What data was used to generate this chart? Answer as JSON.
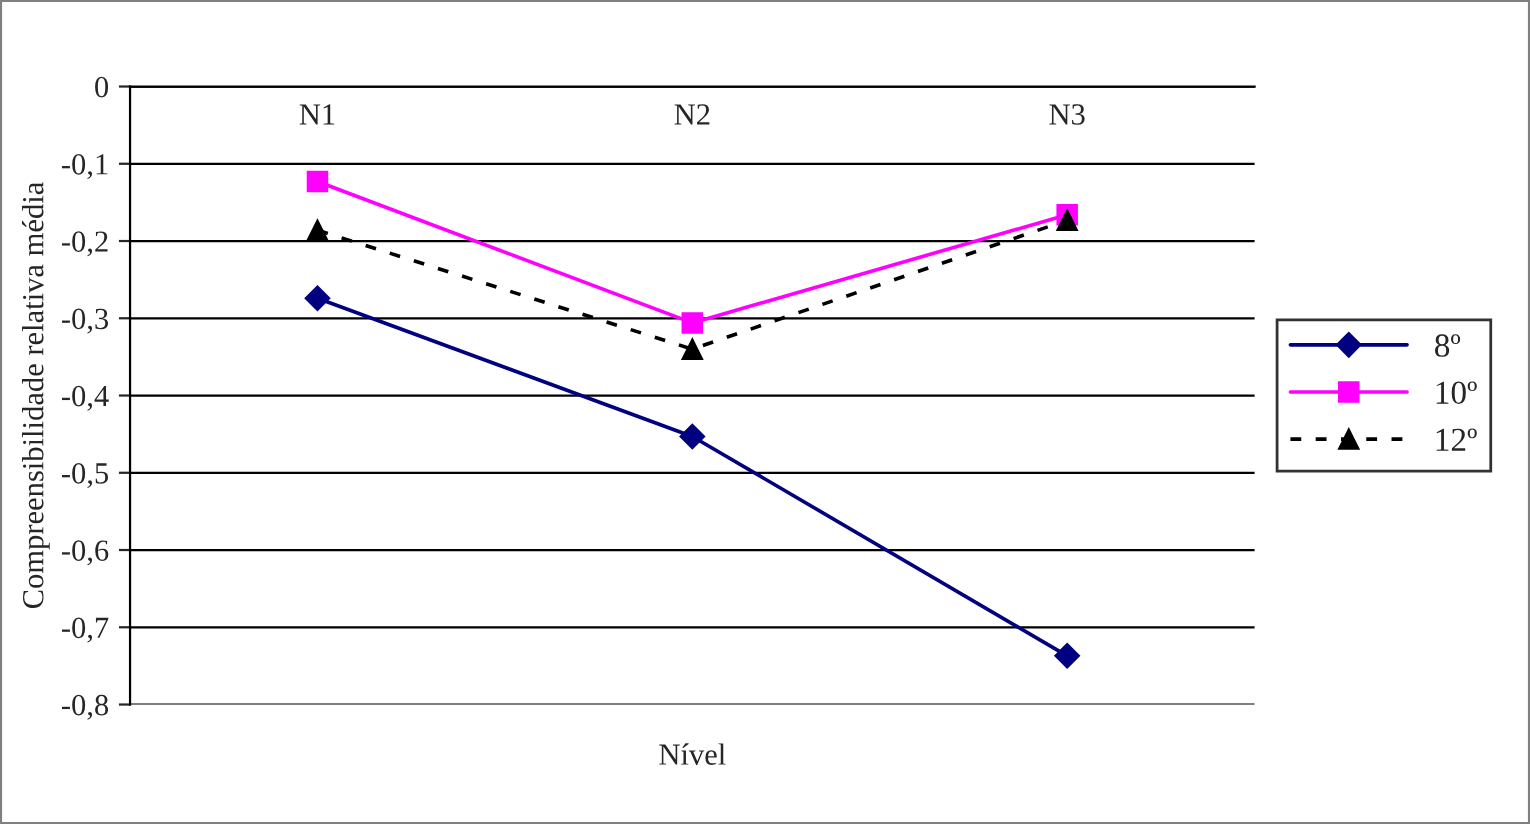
{
  "chart_data": {
    "type": "line",
    "xlabel": "Nível",
    "ylabel": "Compreensibilidade relativa média",
    "categories": [
      "N1",
      "N2",
      "N3"
    ],
    "series": [
      {
        "name": "8º",
        "color": "#000080",
        "values": [
          -0.274,
          -0.453,
          -0.737
        ],
        "marker": "diamond",
        "line_style": "solid"
      },
      {
        "name": "10º",
        "color": "#ff00ff",
        "values": [
          -0.123,
          -0.306,
          -0.166
        ],
        "marker": "square",
        "line_style": "solid"
      },
      {
        "name": "12º",
        "color": "#000000",
        "values": [
          -0.186,
          -0.34,
          -0.173
        ],
        "marker": "triangle",
        "line_style": "dashed"
      }
    ],
    "ylim": [
      -0.8,
      0
    ],
    "yticks": [
      {
        "value": 0,
        "label": "0"
      },
      {
        "value": -0.1,
        "label": "-0,1"
      },
      {
        "value": -0.2,
        "label": "-0,2"
      },
      {
        "value": -0.3,
        "label": "-0,3"
      },
      {
        "value": -0.4,
        "label": "-0,4"
      },
      {
        "value": -0.5,
        "label": "-0,5"
      },
      {
        "value": -0.6,
        "label": "-0,6"
      },
      {
        "value": -0.7,
        "label": "-0,7"
      },
      {
        "value": -0.8,
        "label": "-0,8"
      }
    ],
    "grid": "y",
    "legend": "right"
  }
}
